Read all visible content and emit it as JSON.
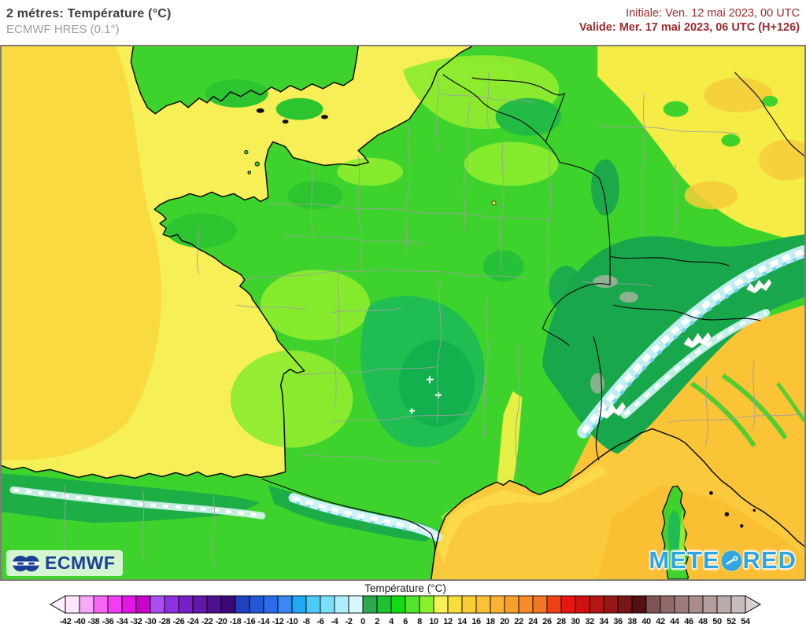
{
  "header": {
    "title": "2 métres: Température (°C)",
    "subtitle": "ECMWF HRES (0.1°)",
    "init_label": "Initiale: Ven. 12 mai 2023, 00 UTC",
    "valid_label": "Valide: Mer. 17 mai 2023, 06 UTC (H+126)"
  },
  "map": {
    "ecmwf_text": "ECMWF",
    "meteored_part1": "METE",
    "meteored_part2": "RED"
  },
  "colors": {
    "date_red": "#9c2b2d",
    "meteored_blue": "#2FA6DF",
    "ecmwf_blue": "#1B3F96",
    "land_green": "#3ED32C",
    "sea_yellow": "#F6EF55",
    "med_yellow": "#FBC93C"
  },
  "colorbar": {
    "title": "Température (°C)",
    "tick_values": [
      -42,
      -40,
      -38,
      -36,
      -34,
      -32,
      -30,
      -28,
      -26,
      -24,
      -22,
      -20,
      -18,
      -16,
      -14,
      -12,
      -10,
      -8,
      -6,
      -4,
      -2,
      0,
      2,
      4,
      6,
      8,
      10,
      12,
      14,
      16,
      18,
      20,
      22,
      24,
      26,
      28,
      30,
      32,
      34,
      36,
      38,
      40,
      42,
      44,
      46,
      48,
      50,
      52,
      54
    ],
    "cell_colors": [
      "#FBE6FB",
      "#F9A7F9",
      "#F566F5",
      "#F33DF3",
      "#E316E3",
      "#C701C7",
      "#A94FF1",
      "#8D30E1",
      "#7621C5",
      "#6018A8",
      "#4E0F90",
      "#3D0878",
      "#1E42BD",
      "#2457D5",
      "#2C6CE9",
      "#3B88F3",
      "#20A8F4",
      "#4CCBF7",
      "#7ADFF9",
      "#ACEEFA",
      "#D8F8FC",
      "#2AA94D",
      "#20C233",
      "#14DA14",
      "#54E32C",
      "#88F02E",
      "#F8F056",
      "#F8DE3D",
      "#FACD37",
      "#FBC137",
      "#FBB232",
      "#F99F2C",
      "#F68B28",
      "#F37623",
      "#F04114",
      "#E91511",
      "#CF1211",
      "#B41515",
      "#971717",
      "#781515",
      "#511111",
      "#7F5353",
      "#906969",
      "#9D7B7B",
      "#A98D8D",
      "#B39D9D",
      "#BDABAB",
      "#C7BBBB"
    ],
    "left_arrow_color": "#FCF0FC",
    "right_arrow_color": "#D8D0D0"
  }
}
